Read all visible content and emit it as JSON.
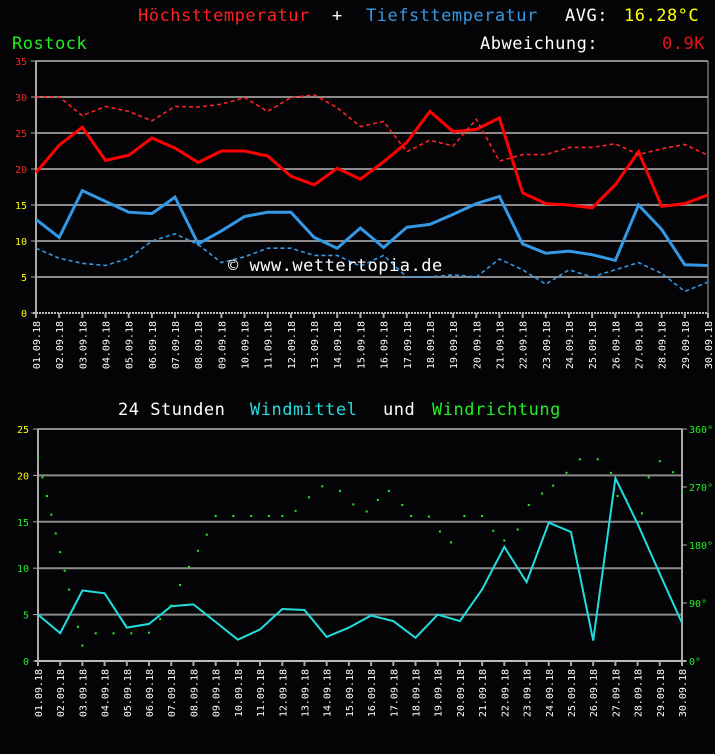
{
  "header": {
    "title_max": "Höchsttemperatur",
    "title_plus": "+",
    "title_min": "Tiefsttemperatur",
    "avg_label": "AVG:",
    "avg_value": "16.28°C",
    "location": "Rostock",
    "deviation_label": "Abweichung:",
    "deviation_value": "0.9K"
  },
  "colors": {
    "background": "#040407",
    "max": "#ff0000",
    "min": "#3399e6",
    "wind_speed": "#22dddd",
    "wind_dir": "#22ee22",
    "location": "#22ee22",
    "avg_value": "#ffff00",
    "deviation_value": "#ee1111",
    "grid": "#888888"
  },
  "watermark": "© www.wettertopia.de",
  "chart_data": [
    {
      "type": "line",
      "title": "Höchsttemperatur + Tiefsttemperatur",
      "ylim": [
        0,
        35
      ],
      "yticks": [
        0,
        5,
        10,
        15,
        20,
        25,
        30,
        35
      ],
      "ytick_colors": [
        "#ffff00",
        "#ffff00",
        "#ffff00",
        "#ffff00",
        "#ff2222",
        "#ff2222",
        "#ff2222",
        "#ff2222"
      ],
      "grid": true,
      "categories": [
        "01.09.18",
        "02.09.18",
        "03.09.18",
        "04.09.18",
        "05.09.18",
        "06.09.18",
        "07.09.18",
        "08.09.18",
        "09.09.18",
        "10.09.18",
        "11.09.18",
        "12.09.18",
        "13.09.18",
        "14.09.18",
        "15.09.18",
        "16.09.18",
        "17.09.18",
        "18.09.18",
        "19.09.18",
        "20.09.18",
        "21.09.18",
        "22.09.18",
        "23.09.18",
        "24.09.18",
        "25.09.18",
        "26.09.18",
        "27.09.18",
        "28.09.18",
        "29.09.18",
        "30.09.18"
      ],
      "series": [
        {
          "name": "Höchsttemperatur",
          "style": "solid",
          "color": "#ff0000",
          "values": [
            19.5,
            23.3,
            25.8,
            21.2,
            21.9,
            24.3,
            22.9,
            20.9,
            22.5,
            22.5,
            21.8,
            19.0,
            17.8,
            20.1,
            18.6,
            21.0,
            23.7,
            28.0,
            25.2,
            25.5,
            27.1,
            16.7,
            15.2,
            15.0,
            14.6,
            17.8,
            22.4,
            14.8,
            15.2,
            16.4
          ]
        },
        {
          "name": "Höchsttemperatur Referenz",
          "style": "dashed",
          "color": "#ff2222",
          "values": [
            30.0,
            30.0,
            27.4,
            28.7,
            28.0,
            26.7,
            28.7,
            28.6,
            29.0,
            29.9,
            28.0,
            29.9,
            30.3,
            28.5,
            25.9,
            26.6,
            22.4,
            24.0,
            23.2,
            26.9,
            21.1,
            22.0,
            22.0,
            23.0,
            23.0,
            23.5,
            22.0,
            22.8,
            23.4,
            21.9
          ]
        },
        {
          "name": "Tiefsttemperatur",
          "style": "solid",
          "color": "#3399e6",
          "values": [
            13.0,
            10.5,
            17.0,
            15.5,
            14.0,
            13.8,
            16.1,
            9.6,
            11.4,
            13.4,
            14.0,
            14.0,
            10.5,
            9.0,
            11.8,
            9.1,
            11.9,
            12.3,
            13.7,
            15.2,
            16.2,
            9.6,
            8.3,
            8.6,
            8.1,
            7.3,
            15.0,
            11.6,
            6.7,
            6.6
          ]
        },
        {
          "name": "Tiefsttemperatur Referenz",
          "style": "dashed",
          "color": "#3399e6",
          "values": [
            9.0,
            7.6,
            6.9,
            6.6,
            7.6,
            10.0,
            11.0,
            9.5,
            7.0,
            7.8,
            9.0,
            9.0,
            8.0,
            8.0,
            6.5,
            8.0,
            5.0,
            5.0,
            5.3,
            5.0,
            7.5,
            6.0,
            4.0,
            6.0,
            5.0,
            6.0,
            7.0,
            5.5,
            3.0,
            4.3
          ]
        }
      ]
    },
    {
      "type": "line",
      "title": "24 Stunden Windmittel und Windrichtung",
      "title_parts": [
        "24 Stunden",
        "Windmittel",
        "und",
        "Windrichtung"
      ],
      "ylim": [
        0,
        25
      ],
      "yticks": [
        0,
        5,
        10,
        15,
        20,
        25
      ],
      "ytick_colors": [
        "#22ee22",
        "#22ee22",
        "#22ee22",
        "#22ee22",
        "#ffff00",
        "#ffff00"
      ],
      "y2lim": [
        0,
        360
      ],
      "y2ticks": [
        "0°",
        "90°",
        "180°",
        "270°",
        "360°"
      ],
      "grid": true,
      "categories": [
        "01.09.18",
        "02.09.18",
        "03.09.18",
        "04.09.18",
        "05.09.18",
        "06.09.18",
        "07.09.18",
        "08.09.18",
        "09.09.18",
        "10.09.18",
        "11.09.18",
        "12.09.18",
        "13.09.18",
        "14.09.18",
        "15.09.18",
        "16.09.18",
        "17.09.18",
        "18.09.18",
        "19.09.18",
        "20.09.18",
        "21.09.18",
        "22.09.18",
        "23.09.18",
        "24.09.18",
        "25.09.18",
        "26.09.18",
        "27.09.18",
        "28.09.18",
        "29.09.18",
        "30.09.18"
      ],
      "series": [
        {
          "name": "Windmittel",
          "style": "solid",
          "color": "#22dddd",
          "values": [
            5.0,
            3.0,
            7.6,
            7.3,
            3.6,
            4.0,
            5.9,
            6.1,
            4.2,
            2.3,
            3.4,
            5.6,
            5.5,
            2.6,
            3.6,
            4.9,
            4.3,
            2.5,
            5.0,
            4.3,
            7.7,
            12.3,
            8.5,
            14.9,
            13.9,
            2.2,
            19.7,
            14.8,
            9.4,
            4.1
          ]
        },
        {
          "name": "Windrichtung",
          "style": "dots",
          "color": "#22ee22",
          "axis": "y2",
          "points": [
            [
              1.0,
              314
            ],
            [
              1.2,
              285
            ],
            [
              1.4,
              256
            ],
            [
              1.6,
              227
            ],
            [
              1.8,
              198
            ],
            [
              2.0,
              169
            ],
            [
              2.2,
              140
            ],
            [
              2.4,
              111
            ],
            [
              2.6,
              82
            ],
            [
              2.8,
              53
            ],
            [
              3.0,
              24
            ],
            [
              3.6,
              43
            ],
            [
              4.4,
              43
            ],
            [
              5.2,
              43
            ],
            [
              6.0,
              44
            ],
            [
              6.5,
              65
            ],
            [
              7.0,
              86
            ],
            [
              7.4,
              118
            ],
            [
              7.8,
              146
            ],
            [
              8.2,
              171
            ],
            [
              8.6,
              196
            ],
            [
              9.0,
              225
            ],
            [
              9.8,
              225
            ],
            [
              10.6,
              225
            ],
            [
              11.4,
              225
            ],
            [
              12.0,
              225
            ],
            [
              12.6,
              233
            ],
            [
              13.2,
              254
            ],
            [
              13.8,
              271
            ],
            [
              14.6,
              264
            ],
            [
              15.2,
              243
            ],
            [
              15.8,
              232
            ],
            [
              16.3,
              250
            ],
            [
              16.8,
              264
            ],
            [
              17.4,
              242
            ],
            [
              17.8,
              225
            ],
            [
              18.6,
              224
            ],
            [
              19.1,
              201
            ],
            [
              19.6,
              184
            ],
            [
              20.2,
              225
            ],
            [
              21.0,
              225
            ],
            [
              21.5,
              202
            ],
            [
              22.0,
              187
            ],
            [
              22.6,
              204
            ],
            [
              23.1,
              242
            ],
            [
              23.7,
              260
            ],
            [
              24.2,
              272
            ],
            [
              24.8,
              292
            ],
            [
              25.4,
              313
            ],
            [
              26.2,
              313
            ],
            [
              26.8,
              292
            ],
            [
              27.1,
              256
            ],
            [
              27.5,
              250
            ],
            [
              28.2,
              229
            ],
            [
              28.5,
              285
            ],
            [
              29.0,
              310
            ],
            [
              29.6,
              293
            ],
            [
              30.0,
              263
            ],
            [
              30.4,
              244
            ],
            [
              30.6,
              228
            ]
          ]
        }
      ]
    }
  ]
}
